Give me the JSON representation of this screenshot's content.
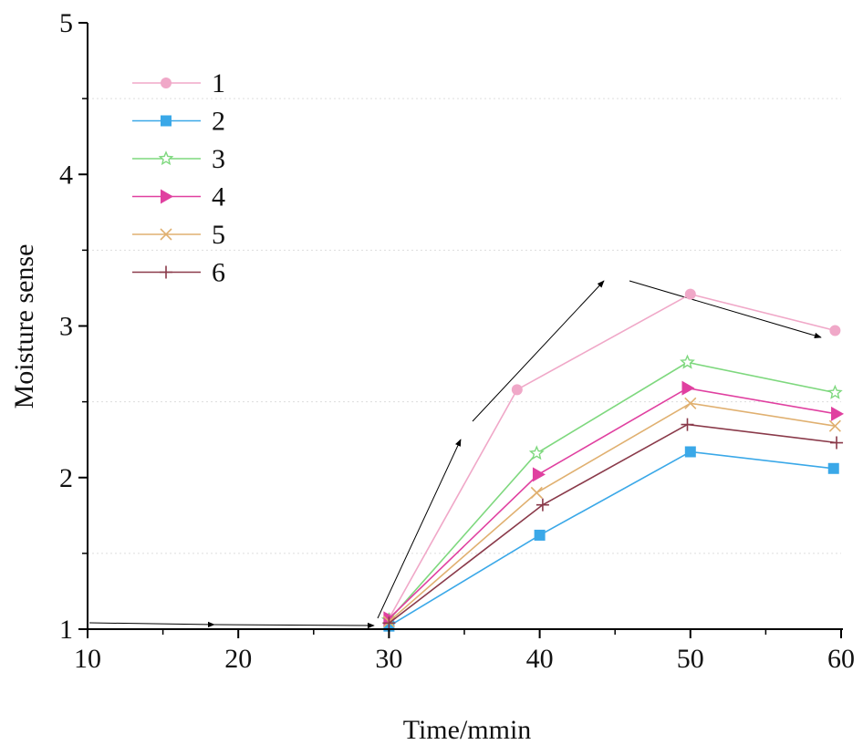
{
  "chart_data": {
    "type": "line",
    "title": "",
    "xlabel": "Time/mmin",
    "ylabel": "Moisture sense",
    "xlim": [
      10,
      60
    ],
    "ylim": [
      1,
      5
    ],
    "xticks": [
      "10",
      "20",
      "30",
      "40",
      "50",
      "60"
    ],
    "yticks": [
      "1",
      "2",
      "3",
      "4",
      "5"
    ],
    "grid": "dotted horizontal at 1.5, 2.5, 3.5, 4.5",
    "legend_placement": "top-left",
    "series": [
      {
        "name": "1",
        "color": "#f0a8c8",
        "marker": "circle",
        "x": [
          30,
          38.5,
          50,
          59.6
        ],
        "y": [
          1.07,
          2.58,
          3.21,
          2.97
        ]
      },
      {
        "name": "2",
        "color": "#3aa8e8",
        "marker": "square",
        "x": [
          30,
          40,
          50,
          59.5
        ],
        "y": [
          1.02,
          1.62,
          2.17,
          2.06
        ]
      },
      {
        "name": "3",
        "color": "#7ed87e",
        "marker": "star",
        "x": [
          30,
          39.8,
          49.8,
          59.6
        ],
        "y": [
          1.06,
          2.16,
          2.76,
          2.56
        ]
      },
      {
        "name": "4",
        "color": "#e040a0",
        "marker": "triangle-right",
        "x": [
          30,
          39.9,
          49.8,
          59.7
        ],
        "y": [
          1.07,
          2.02,
          2.59,
          2.42
        ]
      },
      {
        "name": "5",
        "color": "#e0b070",
        "marker": "x",
        "x": [
          30,
          39.8,
          50,
          59.6
        ],
        "y": [
          1.05,
          1.9,
          2.49,
          2.34
        ]
      },
      {
        "name": "6",
        "color": "#8a3a4a",
        "marker": "plus",
        "x": [
          30,
          40.2,
          49.8,
          59.7
        ],
        "y": [
          1.04,
          1.82,
          2.35,
          2.23
        ]
      }
    ]
  }
}
